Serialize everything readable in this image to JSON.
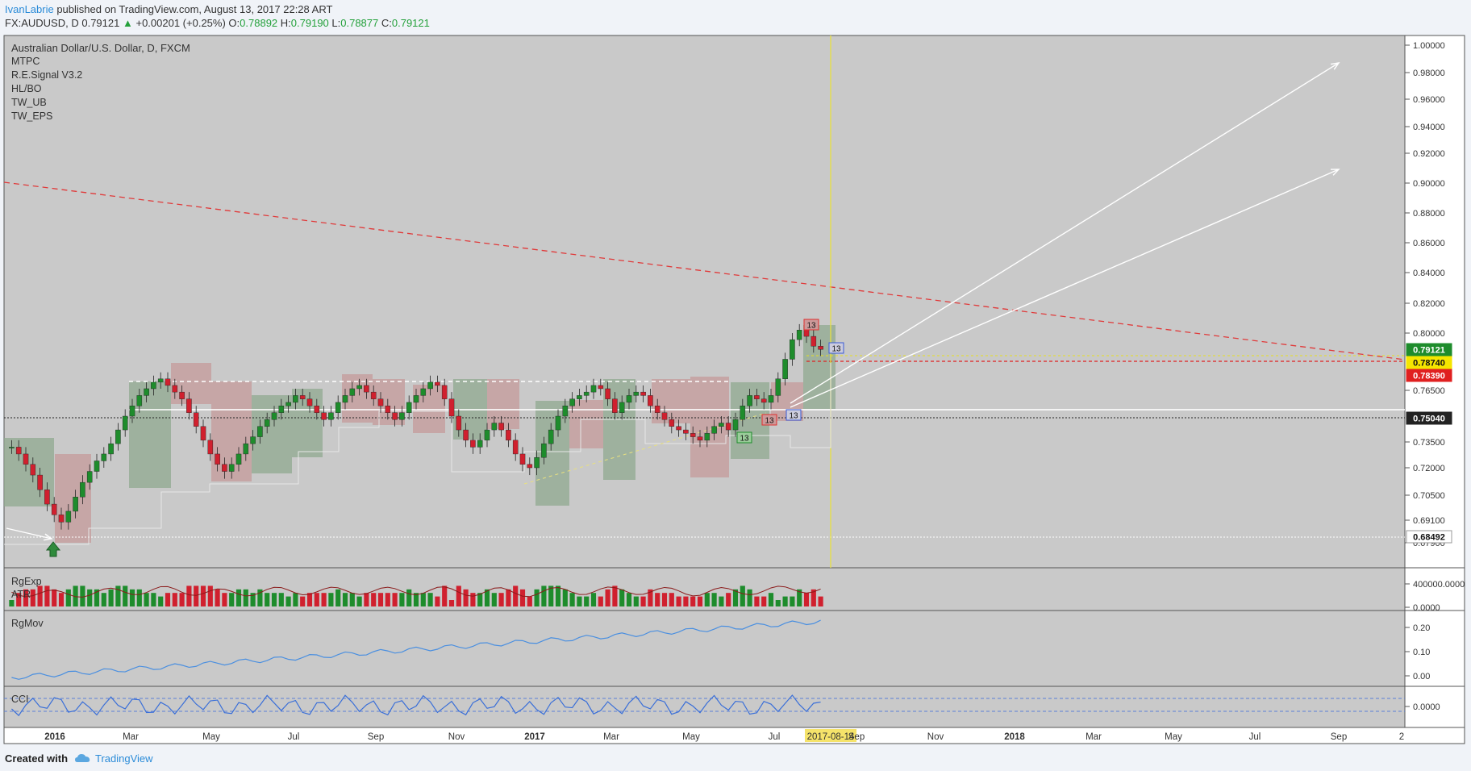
{
  "header": {
    "author": "IvanLabrie",
    "published_text": " published on TradingView.com, August 13, 2017 22:28 ART",
    "symbol": "FX:AUDUSD, D",
    "last": "0.79121",
    "change": "+0.00201 (+0.25%)",
    "o_label": "O:",
    "o_value": "0.78892",
    "h_label": "H:",
    "h_value": "0.79190",
    "l_label": "L:",
    "l_value": "0.78877",
    "c_label": "C:",
    "c_value": "0.79121"
  },
  "legend": {
    "title": "Australian Dollar/U.S. Dollar, D, FXCM",
    "indicators": [
      "MTPC",
      "R.E.Signal V3.2",
      "HL/BO",
      "TW_UB",
      "TW_EPS"
    ]
  },
  "subpanes": {
    "volume_labels": [
      "RgExp",
      "ATR"
    ],
    "rgmov_label": "RgMov",
    "cci_label": "CCI"
  },
  "colors": {
    "background": "#c8c8c8",
    "bull": "#1e8c2c",
    "bear": "#d0202e",
    "trendline": "#e03a3a",
    "arrow": "#ffffff",
    "rgmov": "#4a8fe0",
    "cci": "#3a6fd8",
    "author": "#2a8bd8"
  },
  "chart_data": {
    "type": "candlestick",
    "title": "Australian Dollar/U.S. Dollar, D, FXCM",
    "x_ticks": [
      "2016",
      "Mar",
      "May",
      "Jul",
      "Sep",
      "Nov",
      "2017",
      "Mar",
      "May",
      "Jul",
      "2017-08-14",
      "Sep",
      "Nov",
      "2018",
      "Mar",
      "May",
      "Jul",
      "Sep",
      "2"
    ],
    "y_ticks": [
      "1.00000",
      "0.98000",
      "0.96000",
      "0.94000",
      "0.92000",
      "0.90000",
      "0.88000",
      "0.86000",
      "0.84000",
      "0.82000",
      "0.80000",
      "0.76500",
      "0.73500",
      "0.72000",
      "0.70500",
      "0.69100",
      "0.67900"
    ],
    "price_labels": [
      {
        "value": "0.79121",
        "color": "#1e8c2c"
      },
      {
        "value": "0.78740",
        "color": "#f5e600"
      },
      {
        "value": "0.78390",
        "color": "#e02020"
      },
      {
        "value": "0.75040",
        "color": "#222222"
      },
      {
        "value": "0.68492",
        "color": "#ffffff"
      }
    ],
    "series_close": [
      0.732,
      0.728,
      0.722,
      0.716,
      0.708,
      0.7,
      0.694,
      0.69,
      0.696,
      0.704,
      0.712,
      0.718,
      0.724,
      0.728,
      0.734,
      0.742,
      0.75,
      0.756,
      0.762,
      0.766,
      0.77,
      0.772,
      0.768,
      0.764,
      0.76,
      0.752,
      0.744,
      0.736,
      0.728,
      0.722,
      0.718,
      0.722,
      0.728,
      0.734,
      0.738,
      0.744,
      0.748,
      0.752,
      0.756,
      0.758,
      0.762,
      0.76,
      0.756,
      0.752,
      0.748,
      0.752,
      0.758,
      0.762,
      0.766,
      0.768,
      0.764,
      0.76,
      0.756,
      0.752,
      0.748,
      0.752,
      0.758,
      0.762,
      0.766,
      0.77,
      0.768,
      0.76,
      0.75,
      0.742,
      0.736,
      0.732,
      0.736,
      0.742,
      0.746,
      0.742,
      0.736,
      0.728,
      0.722,
      0.72,
      0.726,
      0.734,
      0.742,
      0.75,
      0.756,
      0.76,
      0.762,
      0.764,
      0.768,
      0.766,
      0.76,
      0.752,
      0.758,
      0.762,
      0.764,
      0.762,
      0.756,
      0.752,
      0.748,
      0.744,
      0.742,
      0.74,
      0.738,
      0.736,
      0.74,
      0.744,
      0.746,
      0.742,
      0.748,
      0.756,
      0.762,
      0.76,
      0.758,
      0.762,
      0.772,
      0.784,
      0.796,
      0.802,
      0.798,
      0.792,
      0.79
    ],
    "cci_series": [
      0.0
    ],
    "annotations": [
      "13",
      "13",
      "13",
      "13",
      "13"
    ],
    "ylim": [
      0.674,
      1.004
    ],
    "grid": false
  },
  "footer": {
    "created": "Created with",
    "brand": "TradingView"
  }
}
